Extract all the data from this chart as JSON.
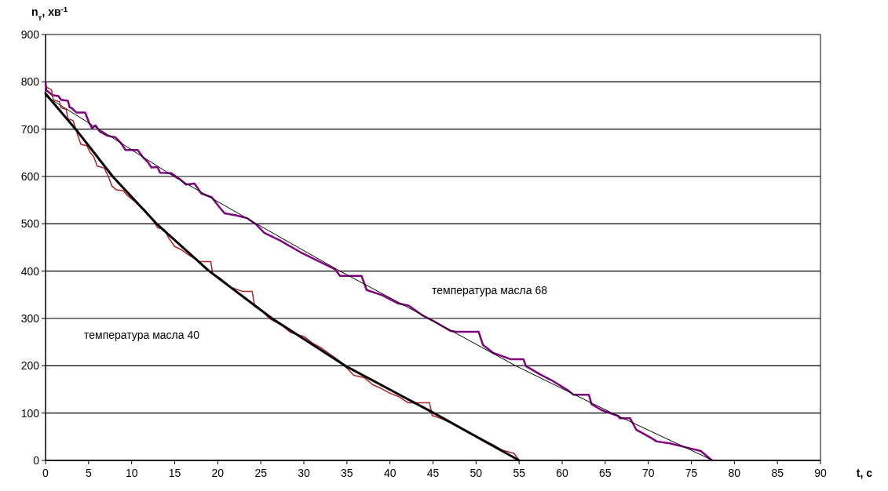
{
  "chart_data": {
    "type": "line",
    "xlabel": "t, с",
    "ylabel": "n$_{т}$, хв$^{-1}$",
    "xlim": [
      0,
      90
    ],
    "xticks": [
      0,
      5,
      10,
      15,
      20,
      25,
      30,
      35,
      40,
      45,
      50,
      55,
      60,
      65,
      70,
      75,
      80,
      85,
      90
    ],
    "ylim": [
      0,
      900
    ],
    "yticks": [
      0,
      100,
      200,
      300,
      400,
      500,
      600,
      700,
      800,
      900
    ],
    "grid": "y",
    "marker": "none",
    "line_style": "solid",
    "annotations": [
      "температура масла 68",
      "температура масла 40"
    ],
    "series": [
      {
        "color": "#800080",
        "x": [
          0,
          0.1,
          0.8,
          1.5,
          1.8,
          2.6,
          2.8,
          3.0,
          3.6,
          4.6,
          5.1,
          5.4,
          5.8,
          6.3,
          7.2,
          8.1,
          8.7,
          9.3,
          10.7,
          11.3,
          11.9,
          12.3,
          13.0,
          13.3,
          14.6,
          15.7,
          16.3,
          17.3,
          18.1,
          19.3,
          20.2,
          20.8,
          22.1,
          23.4,
          24.5,
          25.4,
          27.2,
          29.6,
          31.5,
          33.6,
          34.2,
          36.7,
          37.3,
          39.1,
          40.9,
          42.2,
          43.9,
          45.2,
          47.0,
          47.7,
          50.3,
          50.8,
          52.0,
          54.0,
          55.5,
          55.8,
          57.4,
          58.8,
          60.6,
          61.3,
          63.1,
          63.4,
          64.6,
          66.5,
          66.7,
          67.9,
          68.6,
          70.1,
          71.0,
          72.5,
          74.3,
          76.1,
          77.4
        ],
        "values": [
          800,
          782,
          772,
          770,
          762,
          760,
          746,
          745,
          735,
          735,
          712,
          702,
          708,
          695,
          686,
          683,
          672,
          656,
          656,
          641,
          630,
          619,
          620,
          608,
          607,
          593,
          583,
          585,
          564,
          556,
          535,
          522,
          518,
          512,
          498,
          481,
          465,
          440,
          423,
          404,
          390,
          390,
          360,
          349,
          332,
          327,
          305,
          293,
          274,
          272,
          272,
          244,
          227,
          214,
          214,
          199,
          182,
          169,
          149,
          139,
          139,
          119,
          106,
          94,
          89,
          89,
          65,
          50,
          40,
          36,
          28,
          20,
          0
        ]
      },
      {
        "color": "#000000",
        "x": [
          0,
          6.2,
          14.9,
          24.5,
          34.2,
          44.5,
          54.6,
          65.8,
          77.5
        ],
        "values": [
          770,
          700,
          600,
          500,
          400,
          300,
          200,
          100,
          0
        ]
      },
      {
        "color": "#b22222",
        "x": [
          0,
          0.7,
          0.9,
          1.6,
          1.8,
          2.4,
          2.6,
          3.2,
          3.6,
          4.1,
          4.8,
          5.2,
          5.6,
          6.0,
          6.8,
          7.3,
          7.7,
          8.2,
          9.0,
          9.5,
          10.5,
          11.5,
          12.3,
          13.0,
          13.8,
          14.3,
          15.0,
          15.8,
          16.8,
          17.5,
          17.8,
          19.2,
          19.4,
          20.5,
          21.5,
          22.9,
          24.0,
          24.3,
          25.2,
          26.0,
          27.5,
          28.5,
          30.0,
          31.0,
          32.0,
          33.0,
          34.0,
          35.0,
          35.8,
          37.0,
          38.0,
          39.0,
          40.0,
          41.0,
          42.1,
          44.6,
          44.9,
          46,
          47,
          48,
          49,
          50,
          51,
          52,
          53,
          54.4,
          55
        ],
        "values": [
          790,
          783,
          762,
          758,
          745,
          742,
          722,
          718,
          695,
          668,
          665,
          650,
          642,
          622,
          618,
          600,
          580,
          572,
          570,
          560,
          545,
          530,
          512,
          492,
          488,
          470,
          452,
          445,
          432,
          425,
          420,
          420,
          396,
          382,
          366,
          357,
          357,
          325,
          315,
          300,
          285,
          270,
          262,
          248,
          238,
          225,
          212,
          195,
          180,
          175,
          160,
          152,
          142,
          135,
          122,
          122,
          95,
          88,
          80,
          70,
          60,
          52,
          42,
          33,
          22,
          15,
          0
        ]
      },
      {
        "color": "#000000",
        "x": [
          0,
          3.5,
          7.8,
          12.9,
          19,
          26.3,
          34.8,
          45.1,
          55
        ],
        "values": [
          775,
          700,
          600,
          500,
          400,
          300,
          200,
          100,
          0
        ]
      }
    ]
  }
}
